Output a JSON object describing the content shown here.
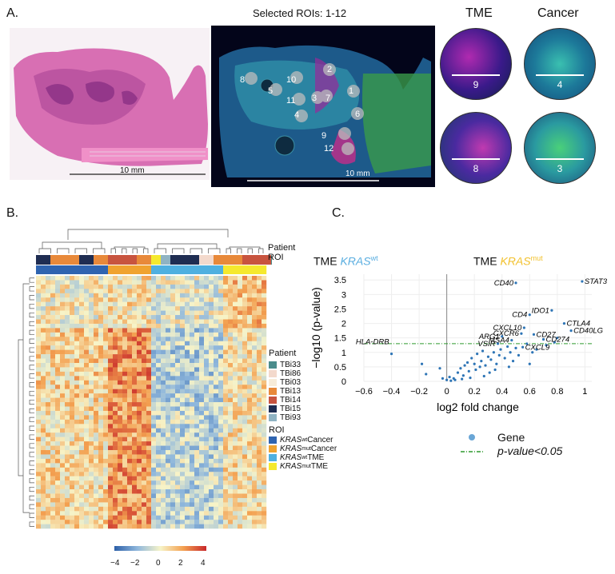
{
  "panels": {
    "a": "A.",
    "b": "B.",
    "c": "C."
  },
  "he_scale": "10 mm",
  "if_title": "Selected ROIs: 1-12",
  "if_scale": "10 mm",
  "rois": [
    "1",
    "2",
    "3",
    "4",
    "5",
    "6",
    "7",
    "8",
    "9",
    "10",
    "11",
    "12"
  ],
  "tme_title": "TME",
  "cancer_title": "Cancer",
  "circle_nums": [
    "9",
    "4",
    "8",
    "3"
  ],
  "heatmap": {
    "patient_label": "Patient",
    "roi_label": "ROI",
    "legend_patient_title": "Patient",
    "legend_patients": [
      {
        "name": "TBi33",
        "color": "#4a8c8c"
      },
      {
        "name": "TBi86",
        "color": "#f3d9cc"
      },
      {
        "name": "TBi03",
        "color": "#f7ecd9"
      },
      {
        "name": "TBi13",
        "color": "#e8893a"
      },
      {
        "name": "TBi14",
        "color": "#c8543f"
      },
      {
        "name": "TBi15",
        "color": "#1f2d52"
      },
      {
        "name": "TBi93",
        "color": "#8fb3c3"
      }
    ],
    "legend_roi_title": "ROI",
    "legend_rois": [
      {
        "gene": "KRAS",
        "sup": "wt",
        "suffix": " Cancer",
        "color": "#2f64b0"
      },
      {
        "gene": "KRAS",
        "sup": "mut",
        "suffix": " Cancer",
        "color": "#f0a330"
      },
      {
        "gene": "KRAS",
        "sup": "wt",
        "suffix": " TME",
        "color": "#4fb0e0"
      },
      {
        "gene": "KRAS",
        "sup": "mut",
        "suffix": " TME",
        "color": "#f5e92e"
      }
    ],
    "colorbar_ticks": [
      "−4",
      "−2",
      "0",
      "2",
      "4"
    ]
  },
  "volcano": {
    "title_left_prefix": "TME ",
    "title_left_gene": "KRAS",
    "title_left_sup": "wt",
    "title_right_prefix": "TME ",
    "title_right_gene": "KRAS",
    "title_right_sup": "mut",
    "legend_gene": "Gene",
    "legend_pval": "p-value<0.05",
    "colors": {
      "point": "#2e75b6",
      "threshold": "#2e9a2e",
      "left_title": "#5aaee0",
      "right_title": "#f2c12e"
    }
  },
  "chart_data": {
    "type": "scatter",
    "title": "",
    "xlabel": "log2 fold change",
    "ylabel": "−log10 (p-value)",
    "xlim": [
      -0.6,
      1.05
    ],
    "ylim": [
      0,
      3.7
    ],
    "x_ticks": [
      "−0.6",
      "−0.4",
      "−0.2",
      "0",
      "0.2",
      "0.4",
      "0.6",
      "0.8",
      "1"
    ],
    "y_ticks": [
      "0",
      "0.5",
      "1",
      "1.5",
      "2",
      "2.5",
      "3",
      "3.5"
    ],
    "threshold": 1.3,
    "grid": true,
    "labeled_points": [
      {
        "label": "STAT3",
        "x": 0.98,
        "y": 3.45
      },
      {
        "label": "CD40",
        "x": 0.5,
        "y": 3.4
      },
      {
        "label": "IDO1",
        "x": 0.76,
        "y": 2.45
      },
      {
        "label": "CD4",
        "x": 0.6,
        "y": 2.3
      },
      {
        "label": "CTLA4",
        "x": 0.85,
        "y": 2.0
      },
      {
        "label": "CXCL10",
        "x": 0.56,
        "y": 1.85
      },
      {
        "label": "CD27",
        "x": 0.63,
        "y": 1.62
      },
      {
        "label": "CD40LG",
        "x": 0.9,
        "y": 1.75
      },
      {
        "label": "CXCR6",
        "x": 0.54,
        "y": 1.65
      },
      {
        "label": "ARG1",
        "x": 0.4,
        "y": 1.55
      },
      {
        "label": "MSA4",
        "x": 0.47,
        "y": 1.42
      },
      {
        "label": "CD274",
        "x": 0.7,
        "y": 1.45
      },
      {
        "label": "VSIR",
        "x": 0.37,
        "y": 1.3
      },
      {
        "label": "CXCL9",
        "x": 0.55,
        "y": 1.18
      },
      {
        "label": "HLA-DRB",
        "x": -0.4,
        "y": 0.95
      }
    ],
    "points": [
      [
        -0.18,
        0.6
      ],
      [
        -0.15,
        0.25
      ],
      [
        -0.05,
        0.45
      ],
      [
        -0.03,
        0.1
      ],
      [
        0.0,
        0.05
      ],
      [
        0.02,
        0.15
      ],
      [
        0.05,
        0.1
      ],
      [
        0.08,
        0.3
      ],
      [
        0.1,
        0.45
      ],
      [
        0.12,
        0.2
      ],
      [
        0.13,
        0.55
      ],
      [
        0.15,
        0.65
      ],
      [
        0.16,
        0.35
      ],
      [
        0.18,
        0.8
      ],
      [
        0.2,
        0.6
      ],
      [
        0.21,
        0.4
      ],
      [
        0.22,
        0.95
      ],
      [
        0.24,
        0.5
      ],
      [
        0.25,
        0.7
      ],
      [
        0.26,
        1.05
      ],
      [
        0.28,
        0.55
      ],
      [
        0.3,
        0.85
      ],
      [
        0.31,
        0.3
      ],
      [
        0.32,
        0.75
      ],
      [
        0.34,
        1.0
      ],
      [
        0.36,
        0.6
      ],
      [
        0.38,
        0.9
      ],
      [
        0.39,
        1.1
      ],
      [
        0.42,
        0.8
      ],
      [
        0.44,
        1.2
      ],
      [
        0.46,
        1.0
      ],
      [
        0.48,
        0.7
      ],
      [
        0.5,
        1.15
      ],
      [
        0.52,
        0.9
      ],
      [
        0.58,
        1.3
      ],
      [
        0.6,
        0.6
      ],
      [
        0.62,
        1.0
      ],
      [
        0.65,
        1.1
      ],
      [
        0.72,
        1.25
      ],
      [
        0.78,
        1.35
      ],
      [
        0.8,
        1.5
      ],
      [
        0.06,
        0.05
      ],
      [
        0.03,
        0.02
      ],
      [
        0.11,
        0.08
      ],
      [
        0.17,
        0.12
      ],
      [
        0.27,
        0.18
      ],
      [
        0.35,
        0.4
      ],
      [
        0.45,
        0.5
      ]
    ]
  }
}
